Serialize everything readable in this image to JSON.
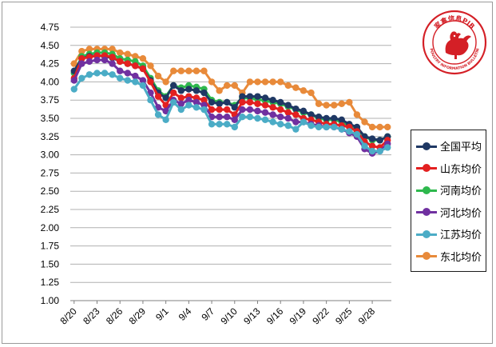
{
  "chart_data": {
    "type": "line",
    "x": [
      "8/20",
      "8/21",
      "8/22",
      "8/23",
      "8/24",
      "8/25",
      "8/26",
      "8/27",
      "8/28",
      "8/29",
      "8/30",
      "8/31",
      "9/1",
      "9/2",
      "9/3",
      "9/4",
      "9/5",
      "9/6",
      "9/7",
      "9/8",
      "9/9",
      "9/10",
      "9/11",
      "9/12",
      "9/13",
      "9/14",
      "9/15",
      "9/16",
      "9/17",
      "9/18",
      "9/19",
      "9/20",
      "9/21",
      "9/22",
      "9/23",
      "9/24",
      "9/25",
      "9/26",
      "9/27",
      "9/28",
      "9/29",
      "9/30"
    ],
    "x_tick_labels": [
      "8/20",
      "8/23",
      "8/26",
      "8/29",
      "9/1",
      "9/4",
      "9/7",
      "9/10",
      "9/13",
      "9/16",
      "9/19",
      "9/22",
      "9/25",
      "9/28"
    ],
    "y_ticks": [
      "1.00",
      "1.25",
      "1.50",
      "1.75",
      "2.00",
      "2.25",
      "2.50",
      "2.75",
      "3.00",
      "3.25",
      "3.50",
      "3.75",
      "4.00",
      "4.25",
      "4.50",
      "4.75"
    ],
    "ylim": [
      1.0,
      4.75
    ],
    "grid": "horizontal",
    "legend_position": "right",
    "title": "",
    "xlabel": "",
    "ylabel": "",
    "series": [
      {
        "name": "全国平均",
        "color": "#1f3864",
        "values": [
          4.15,
          4.32,
          4.35,
          4.36,
          4.35,
          4.33,
          4.28,
          4.25,
          4.22,
          4.18,
          4.02,
          3.85,
          3.78,
          3.95,
          3.88,
          3.9,
          3.88,
          3.85,
          3.72,
          3.7,
          3.72,
          3.65,
          3.8,
          3.8,
          3.8,
          3.78,
          3.75,
          3.72,
          3.68,
          3.63,
          3.6,
          3.55,
          3.52,
          3.5,
          3.5,
          3.48,
          3.42,
          3.38,
          3.25,
          3.22,
          3.2,
          3.25
        ]
      },
      {
        "name": "山东均价",
        "color": "#e32020",
        "values": [
          4.05,
          4.32,
          4.34,
          4.36,
          4.36,
          4.34,
          4.28,
          4.25,
          4.22,
          4.18,
          4.0,
          3.8,
          3.68,
          3.85,
          3.78,
          3.8,
          3.78,
          3.75,
          3.62,
          3.62,
          3.62,
          3.55,
          3.72,
          3.72,
          3.7,
          3.68,
          3.65,
          3.62,
          3.58,
          3.55,
          3.5,
          3.48,
          3.45,
          3.42,
          3.42,
          3.4,
          3.38,
          3.32,
          3.18,
          3.12,
          3.1,
          3.2
        ]
      },
      {
        "name": "河南均价",
        "color": "#2eb84d",
        "values": [
          4.12,
          4.35,
          4.38,
          4.4,
          4.4,
          4.38,
          4.32,
          4.3,
          4.28,
          4.22,
          4.05,
          3.88,
          3.8,
          3.95,
          3.92,
          3.95,
          3.93,
          3.9,
          3.75,
          3.72,
          3.72,
          3.68,
          3.78,
          3.78,
          3.76,
          3.74,
          3.72,
          3.7,
          3.66,
          3.62,
          3.58,
          3.55,
          3.5,
          3.48,
          3.48,
          3.45,
          3.4,
          3.35,
          3.25,
          3.2,
          3.2,
          3.25
        ]
      },
      {
        "name": "河北均价",
        "color": "#7030a0",
        "values": [
          4.02,
          4.25,
          4.28,
          4.3,
          4.3,
          4.25,
          4.15,
          4.12,
          4.08,
          4.02,
          3.85,
          3.65,
          3.6,
          3.75,
          3.7,
          3.75,
          3.72,
          3.68,
          3.52,
          3.52,
          3.52,
          3.48,
          3.62,
          3.62,
          3.6,
          3.58,
          3.55,
          3.52,
          3.5,
          3.45,
          3.45,
          3.42,
          3.4,
          3.38,
          3.38,
          3.35,
          3.3,
          3.25,
          3.08,
          3.02,
          3.05,
          3.15
        ]
      },
      {
        "name": "江苏均价",
        "color": "#4bacc6",
        "values": [
          3.9,
          4.05,
          4.1,
          4.12,
          4.12,
          4.1,
          4.05,
          4.02,
          4.0,
          3.95,
          3.75,
          3.55,
          3.48,
          3.72,
          3.62,
          3.68,
          3.65,
          3.62,
          3.42,
          3.42,
          3.42,
          3.38,
          3.52,
          3.52,
          3.5,
          3.48,
          3.45,
          3.42,
          3.4,
          3.35,
          3.45,
          3.4,
          3.38,
          3.38,
          3.38,
          3.35,
          3.32,
          3.28,
          3.12,
          3.05,
          3.05,
          3.1
        ]
      },
      {
        "name": "东北均价",
        "color": "#e88a3a",
        "values": [
          4.25,
          4.42,
          4.45,
          4.45,
          4.45,
          4.45,
          4.4,
          4.38,
          4.35,
          4.32,
          4.22,
          4.08,
          4.0,
          4.15,
          4.15,
          4.15,
          4.15,
          4.15,
          4.0,
          3.88,
          3.95,
          3.95,
          3.85,
          4.0,
          4.0,
          4.0,
          4.0,
          4.0,
          3.95,
          3.92,
          3.88,
          3.85,
          3.7,
          3.68,
          3.68,
          3.7,
          3.72,
          3.55,
          3.45,
          3.38,
          3.38,
          3.38
        ]
      }
    ]
  },
  "logo": {
    "text_cn": "家禽信息PIB",
    "text_en": "POULTRY INFORMATION BULLETIN"
  }
}
